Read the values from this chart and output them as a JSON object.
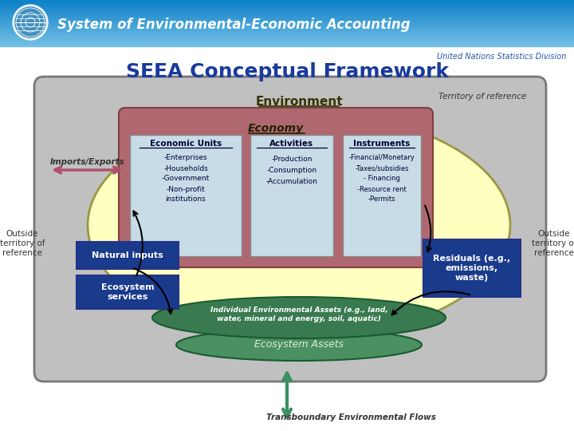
{
  "title": "SEEA Conceptual Framework",
  "header_title": "System of Environmental-Economic Accounting",
  "header_subtitle": "United Nations Statistics Division",
  "main_bg": "#ffffff",
  "territory_label": "Territory of reference",
  "environment_label": "Environment",
  "economy_label": "Economy",
  "eu_box_color": "#c8dce8",
  "eu_title": "Economic Units",
  "eu_items": [
    "-Enterprises",
    "-Households",
    "-Government",
    "-Non-profit",
    "institutions"
  ],
  "act_box_color": "#c8dce8",
  "act_title": "Activities",
  "act_items": [
    "-Production",
    "-Consumption",
    "-Accumulation"
  ],
  "inst_box_color": "#c8dce8",
  "inst_title": "Instruments",
  "inst_items": [
    "-Financial/Monetary",
    "-Taxes/subsidies",
    "- Financing",
    "-Resource rent",
    "-Permits"
  ],
  "nat_input_color": "#1a3a8c",
  "nat_input_label": "Natural inputs",
  "eco_svc_color": "#1a3a8c",
  "eco_svc_label": "Ecosystem\nservices",
  "residuals_color": "#1a3a8c",
  "residuals_label": "Residuals (e.g.,\nemissions,\nwaste)",
  "ind_env_color": "#3a7a50",
  "ind_env_label": "Individual Environmental Assets (e.g., land,\nwater, mineral and energy, soil, aquatic)",
  "eco_assets_color": "#4a9060",
  "eco_assets_label": "Ecosystem Assets",
  "transboundary_label": "Transboundary Environmental Flows",
  "transboundary_arrow_color": "#3a9060",
  "imports_exports_label": "Imports/Exports",
  "imports_exports_color": "#b05070",
  "outside_label": "Outside\nterritory of\nreference"
}
